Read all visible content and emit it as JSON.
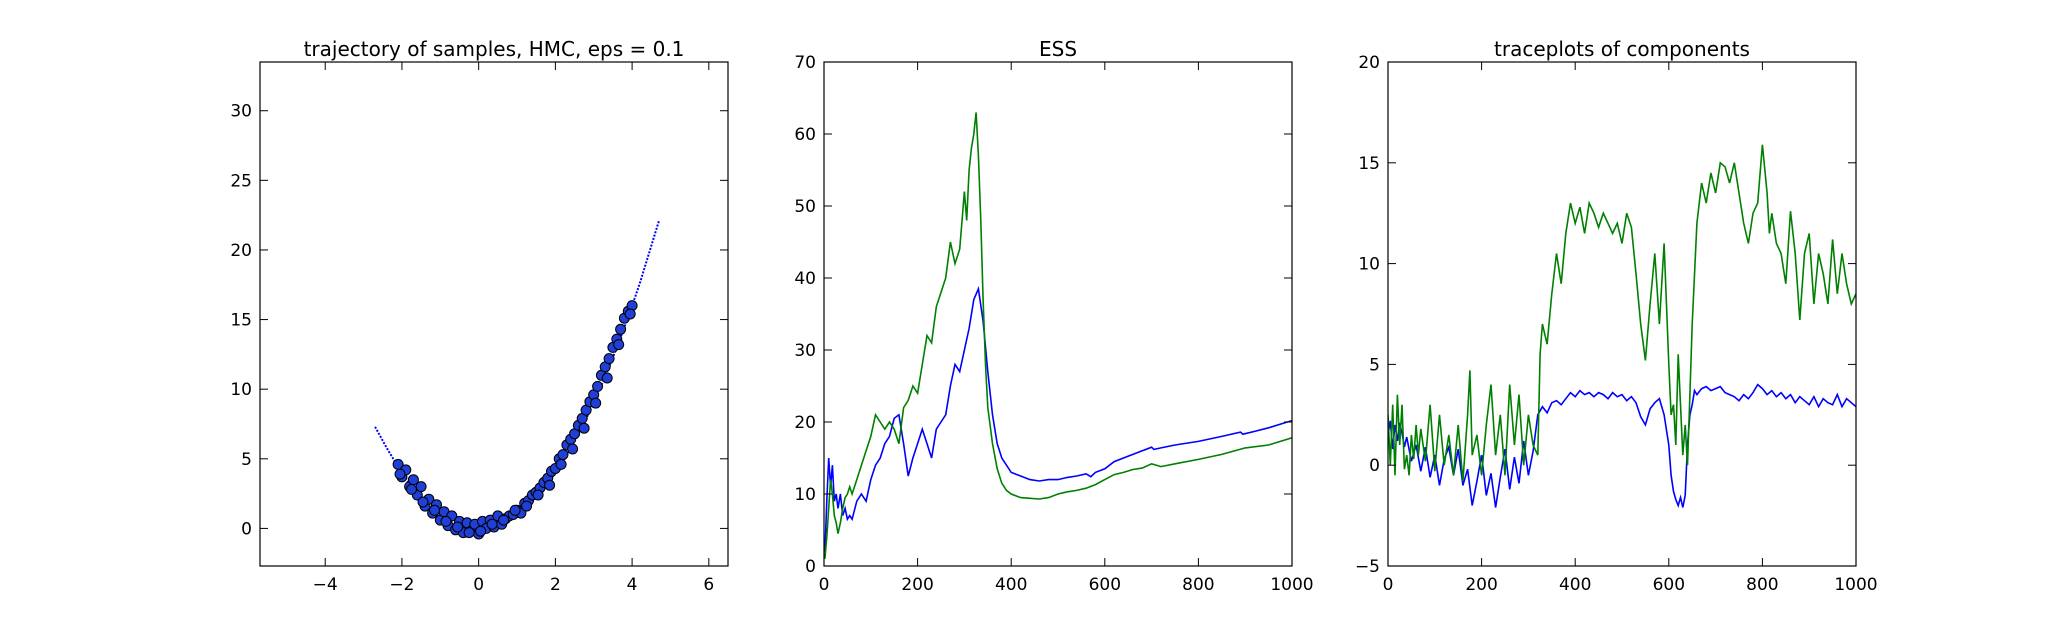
{
  "colors": {
    "blue": "#0000ff",
    "green": "#008000",
    "axes": "#000000",
    "marker_fill": "#1f3fd6"
  },
  "chart_data": [
    {
      "type": "scatter",
      "title": "trajectory of samples, HMC, eps = 0.1",
      "xlabel": "",
      "ylabel": "",
      "xlim": [
        -5.7,
        6.5
      ],
      "ylim": [
        -2.7,
        33.5
      ],
      "xticks": [
        -4,
        -2,
        0,
        2,
        4,
        6
      ],
      "yticks": [
        0,
        5,
        10,
        15,
        20,
        25,
        30
      ],
      "grid": false,
      "legend": "none",
      "trajectory_line": {
        "x": [
          -2.7,
          -2.4,
          -2.1,
          -1.8,
          -1.5,
          -1.2,
          -0.9,
          -0.6,
          -0.3,
          0.0,
          0.3,
          0.6,
          0.9,
          1.2,
          1.5,
          1.8,
          2.1,
          2.4,
          2.7,
          3.0,
          3.3,
          3.6,
          3.9,
          4.2,
          4.5,
          4.7
        ],
        "y": [
          7.3,
          5.8,
          4.4,
          3.2,
          2.2,
          1.4,
          0.8,
          0.3,
          0.1,
          0.0,
          0.1,
          0.3,
          0.8,
          1.4,
          2.2,
          3.2,
          4.4,
          5.8,
          7.3,
          9.0,
          10.9,
          13.0,
          15.2,
          17.6,
          20.3,
          22.1
        ]
      },
      "samples": {
        "x": [
          -2.1,
          -2.0,
          -1.9,
          -1.8,
          -1.7,
          -1.6,
          -1.5,
          -1.4,
          -1.3,
          -1.2,
          -1.1,
          -1.0,
          -0.9,
          -0.8,
          -0.7,
          -0.6,
          -0.5,
          -0.4,
          -0.3,
          -0.2,
          -0.1,
          0.0,
          0.1,
          0.2,
          0.3,
          0.4,
          0.5,
          0.6,
          0.7,
          0.8,
          0.9,
          1.0,
          1.1,
          1.2,
          1.3,
          1.4,
          1.5,
          1.6,
          1.7,
          1.8,
          1.9,
          2.0,
          2.1,
          2.2,
          2.3,
          2.4,
          2.5,
          2.6,
          2.7,
          2.8,
          2.9,
          3.0,
          3.1,
          3.2,
          3.3,
          3.4,
          3.5,
          3.6,
          3.7,
          3.8,
          3.9,
          4.0,
          -2.05,
          -1.75,
          -1.45,
          -1.15,
          -0.85,
          -0.55,
          -0.25,
          0.05,
          0.35,
          0.65,
          0.95,
          1.25,
          1.55,
          1.85,
          2.15,
          2.45,
          2.75,
          3.05,
          3.35,
          3.65,
          3.95
        ],
        "y": [
          4.6,
          3.7,
          4.2,
          3.0,
          3.5,
          2.4,
          3.0,
          1.6,
          2.1,
          1.1,
          1.7,
          0.6,
          1.2,
          0.2,
          0.9,
          -0.1,
          0.5,
          -0.3,
          0.4,
          -0.2,
          0.3,
          -0.4,
          0.5,
          0.0,
          0.6,
          0.1,
          0.9,
          0.3,
          0.7,
          0.9,
          1.0,
          1.3,
          1.1,
          1.8,
          2.0,
          2.4,
          2.6,
          2.9,
          3.3,
          3.6,
          4.1,
          4.3,
          5.0,
          5.3,
          6.0,
          6.4,
          6.8,
          7.4,
          7.9,
          8.5,
          9.1,
          9.6,
          10.2,
          11.0,
          11.6,
          12.2,
          13.0,
          13.6,
          14.3,
          15.1,
          15.6,
          16.0,
          3.9,
          2.8,
          1.9,
          1.3,
          0.5,
          0.1,
          -0.3,
          -0.2,
          0.3,
          0.6,
          1.3,
          1.6,
          2.4,
          3.1,
          4.6,
          5.7,
          7.2,
          9.0,
          10.8,
          13.2,
          15.4
        ]
      }
    },
    {
      "type": "line",
      "title": "ESS",
      "xlabel": "",
      "ylabel": "",
      "xlim": [
        0,
        1000
      ],
      "ylim": [
        0,
        70
      ],
      "xticks": [
        0,
        200,
        400,
        600,
        800,
        1000
      ],
      "yticks": [
        0,
        10,
        20,
        30,
        40,
        50,
        60,
        70
      ],
      "grid": false,
      "legend": "none",
      "series": [
        {
          "color": "blue",
          "x": [
            2,
            6,
            10,
            14,
            18,
            22,
            26,
            30,
            35,
            40,
            45,
            50,
            55,
            60,
            70,
            80,
            90,
            100,
            110,
            120,
            130,
            140,
            150,
            160,
            170,
            180,
            190,
            200,
            210,
            220,
            230,
            240,
            250,
            260,
            270,
            280,
            290,
            300,
            310,
            320,
            330,
            340,
            350,
            360,
            370,
            380,
            390,
            400,
            420,
            440,
            460,
            480,
            500,
            520,
            540,
            560,
            570,
            580,
            600,
            620,
            640,
            660,
            680,
            700,
            705,
            720,
            750,
            800,
            850,
            890,
            895,
            920,
            950,
            1000
          ],
          "y": [
            2,
            9,
            15,
            11,
            14,
            9,
            10,
            8,
            10,
            7,
            8,
            6.5,
            7,
            6.5,
            9,
            10,
            9,
            12,
            14,
            15,
            17,
            18,
            20.5,
            21,
            17,
            12.5,
            15,
            17,
            19,
            17,
            15,
            19,
            20,
            21,
            25,
            28,
            27,
            30,
            33,
            37,
            38.5,
            34,
            27,
            21,
            17,
            15,
            14,
            13,
            12.5,
            12,
            11.8,
            12,
            12,
            12.3,
            12.5,
            12.8,
            12.4,
            13,
            13.5,
            14.5,
            15,
            15.5,
            16,
            16.5,
            16.2,
            16.4,
            16.8,
            17.3,
            18,
            18.6,
            18.3,
            18.7,
            19.2,
            20.2
          ]
        },
        {
          "color": "green",
          "x": [
            2,
            6,
            10,
            14,
            18,
            22,
            26,
            30,
            35,
            40,
            45,
            50,
            55,
            60,
            70,
            80,
            90,
            100,
            110,
            120,
            130,
            140,
            150,
            160,
            170,
            180,
            190,
            200,
            210,
            220,
            230,
            240,
            250,
            260,
            270,
            280,
            290,
            300,
            305,
            310,
            315,
            320,
            325,
            330,
            335,
            340,
            345,
            350,
            360,
            370,
            380,
            390,
            400,
            420,
            440,
            460,
            480,
            500,
            520,
            540,
            560,
            580,
            600,
            620,
            640,
            660,
            680,
            700,
            720,
            750,
            800,
            850,
            900,
            950,
            1000
          ],
          "y": [
            1,
            4,
            8,
            12,
            10,
            7,
            6,
            4.5,
            6,
            8,
            9.5,
            10,
            11,
            10,
            12,
            14,
            16,
            18,
            21,
            20,
            19,
            20,
            19,
            17,
            22,
            23,
            25,
            24,
            28,
            32,
            31,
            36,
            38,
            40,
            45,
            42,
            44,
            52,
            48,
            55,
            58,
            60,
            63,
            57,
            48,
            37,
            28,
            22,
            17,
            13.5,
            11.5,
            10.5,
            10,
            9.5,
            9.4,
            9.3,
            9.5,
            10,
            10.3,
            10.5,
            10.8,
            11.3,
            12,
            12.7,
            13,
            13.4,
            13.6,
            14.2,
            13.8,
            14.2,
            14.8,
            15.5,
            16.4,
            16.8,
            17.8
          ]
        }
      ]
    },
    {
      "type": "line",
      "title": "traceplots of components",
      "xlabel": "",
      "ylabel": "",
      "xlim": [
        0,
        1000
      ],
      "ylim": [
        -5,
        20
      ],
      "xticks": [
        0,
        200,
        400,
        600,
        800,
        1000
      ],
      "yticks": [
        -5,
        0,
        5,
        10,
        15,
        20
      ],
      "grid": false,
      "legend": "none",
      "series": [
        {
          "color": "blue",
          "x": [
            0,
            5,
            10,
            15,
            20,
            25,
            30,
            35,
            40,
            50,
            60,
            70,
            80,
            90,
            100,
            110,
            120,
            130,
            140,
            150,
            160,
            170,
            180,
            190,
            200,
            210,
            220,
            230,
            240,
            250,
            260,
            270,
            280,
            290,
            300,
            310,
            320,
            330,
            340,
            350,
            360,
            370,
            380,
            390,
            400,
            410,
            420,
            430,
            440,
            450,
            460,
            470,
            480,
            490,
            500,
            510,
            520,
            530,
            540,
            550,
            560,
            570,
            580,
            590,
            600,
            605,
            610,
            615,
            620,
            625,
            630,
            635,
            640,
            645,
            650,
            655,
            660,
            670,
            680,
            690,
            700,
            710,
            720,
            730,
            740,
            750,
            760,
            770,
            780,
            790,
            800,
            810,
            820,
            830,
            840,
            850,
            860,
            870,
            880,
            890,
            900,
            910,
            920,
            930,
            940,
            950,
            960,
            970,
            980,
            990,
            1000
          ],
          "y": [
            1.5,
            2.2,
            0.8,
            2.0,
            1.2,
            2.1,
            1.6,
            0.9,
            1.4,
            0.2,
            1.0,
            -0.3,
            0.9,
            -0.6,
            0.5,
            -1.0,
            0.3,
            0.9,
            -0.5,
            0.8,
            -1.0,
            -0.2,
            -2.0,
            -0.8,
            0.5,
            -1.5,
            -0.4,
            -2.1,
            -0.6,
            0.8,
            -1.2,
            0.4,
            -0.9,
            1.2,
            -0.5,
            0.7,
            2.5,
            2.9,
            2.6,
            3.1,
            3.2,
            3.0,
            3.3,
            3.6,
            3.4,
            3.7,
            3.5,
            3.6,
            3.4,
            3.6,
            3.5,
            3.3,
            3.6,
            3.4,
            3.5,
            3.2,
            3.4,
            3.1,
            2.4,
            2.0,
            2.8,
            3.1,
            3.3,
            2.5,
            1.0,
            -0.5,
            -1.3,
            -1.7,
            -2.0,
            -1.6,
            -2.1,
            -1.5,
            1.0,
            2.5,
            3.0,
            3.7,
            3.5,
            3.8,
            3.9,
            3.7,
            3.8,
            3.9,
            3.6,
            3.5,
            3.4,
            3.2,
            3.5,
            3.3,
            3.6,
            4.0,
            3.8,
            3.5,
            3.7,
            3.4,
            3.6,
            3.3,
            3.5,
            3.1,
            3.4,
            3.2,
            3.0,
            3.4,
            2.9,
            3.3,
            3.1,
            3.0,
            3.5,
            2.9,
            3.3,
            3.1,
            2.9
          ]
        },
        {
          "color": "green",
          "x": [
            0,
            5,
            10,
            15,
            20,
            25,
            30,
            35,
            40,
            45,
            50,
            55,
            60,
            65,
            70,
            80,
            90,
            100,
            110,
            120,
            130,
            140,
            150,
            160,
            170,
            175,
            180,
            190,
            200,
            210,
            220,
            230,
            240,
            250,
            260,
            270,
            280,
            290,
            300,
            310,
            320,
            325,
            330,
            340,
            350,
            360,
            370,
            380,
            390,
            400,
            410,
            420,
            430,
            440,
            450,
            460,
            470,
            480,
            490,
            500,
            510,
            520,
            530,
            540,
            550,
            560,
            570,
            580,
            590,
            600,
            605,
            610,
            615,
            620,
            625,
            630,
            635,
            640,
            645,
            650,
            660,
            670,
            680,
            690,
            700,
            710,
            720,
            730,
            740,
            750,
            760,
            770,
            780,
            790,
            800,
            810,
            815,
            820,
            830,
            840,
            850,
            860,
            870,
            880,
            890,
            900,
            910,
            920,
            930,
            940,
            950,
            960,
            970,
            980,
            990,
            1000
          ],
          "y": [
            2.5,
            0.0,
            3.0,
            -0.5,
            3.5,
            1.0,
            3.0,
            -0.2,
            0.5,
            -0.5,
            1.5,
            0.3,
            2.0,
            0.5,
            1.8,
            0.2,
            3.0,
            -0.3,
            2.5,
            0.0,
            1.5,
            -0.5,
            2.0,
            -0.8,
            2.5,
            4.7,
            0.5,
            1.5,
            -0.5,
            2.0,
            4.0,
            0.5,
            2.5,
            -0.5,
            4.0,
            1.0,
            3.5,
            0.0,
            2.5,
            1.0,
            0.5,
            5.5,
            7.0,
            6.0,
            8.5,
            10.5,
            9.0,
            11.5,
            13.0,
            12.0,
            12.8,
            11.5,
            13.0,
            12.5,
            11.8,
            12.5,
            12.0,
            11.5,
            12.0,
            11.0,
            12.5,
            11.8,
            9.5,
            7.0,
            5.2,
            8.0,
            10.5,
            7.0,
            11.0,
            5.0,
            2.5,
            3.0,
            1.0,
            5.5,
            3.0,
            0.5,
            2.0,
            0.0,
            3.5,
            7.0,
            12.0,
            14.0,
            13.0,
            14.5,
            13.5,
            15.0,
            14.8,
            14.0,
            15.0,
            13.5,
            12.0,
            11.0,
            12.5,
            13.0,
            15.9,
            13.5,
            11.5,
            12.5,
            11.0,
            10.5,
            9.0,
            12.6,
            10.5,
            7.2,
            10.5,
            11.5,
            8.0,
            10.5,
            9.5,
            8.0,
            11.2,
            8.5,
            10.5,
            9.0,
            8.0,
            8.5
          ]
        }
      ]
    }
  ]
}
